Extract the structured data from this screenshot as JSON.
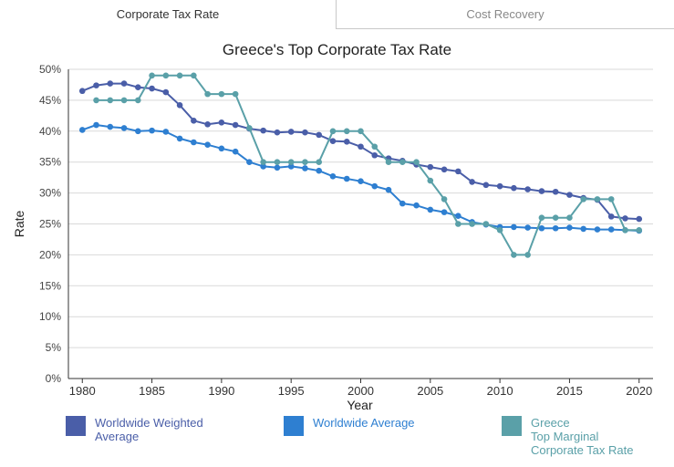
{
  "tabs": [
    {
      "label": "Corporate Tax Rate",
      "active": true
    },
    {
      "label": "Cost Recovery",
      "active": false
    }
  ],
  "chart_data": {
    "type": "line",
    "title": "Greece's Top Corporate Tax Rate",
    "xlabel": "Year",
    "ylabel": "Rate",
    "xlim": [
      1979,
      2021
    ],
    "ylim": [
      0,
      50
    ],
    "xticks": [
      1980,
      1985,
      1990,
      1995,
      2000,
      2005,
      2010,
      2015,
      2020
    ],
    "yticks": [
      0,
      5,
      10,
      15,
      20,
      25,
      30,
      35,
      40,
      45,
      50
    ],
    "ytick_labels": [
      "0%",
      "5%",
      "10%",
      "15%",
      "20%",
      "25%",
      "30%",
      "35%",
      "40%",
      "45%",
      "50%"
    ],
    "grid": true,
    "legend_position": "bottom",
    "series": [
      {
        "name": "Worldwide Weighted Average",
        "color": "#4a5ea8",
        "x": [
          1980,
          1981,
          1982,
          1983,
          1984,
          1985,
          1986,
          1987,
          1988,
          1989,
          1990,
          1991,
          1992,
          1993,
          1994,
          1995,
          1996,
          1997,
          1998,
          1999,
          2000,
          2001,
          2002,
          2003,
          2004,
          2005,
          2006,
          2007,
          2008,
          2009,
          2010,
          2011,
          2012,
          2013,
          2014,
          2015,
          2016,
          2017,
          2018,
          2019,
          2020
        ],
        "values": [
          46.5,
          47.4,
          47.7,
          47.7,
          47.1,
          46.9,
          46.3,
          44.2,
          41.7,
          41.1,
          41.4,
          41.0,
          40.4,
          40.1,
          39.8,
          39.9,
          39.8,
          39.4,
          38.4,
          38.3,
          37.5,
          36.1,
          35.6,
          35.2,
          34.6,
          34.2,
          33.8,
          33.5,
          31.8,
          31.3,
          31.1,
          30.8,
          30.6,
          30.3,
          30.2,
          29.7,
          29.2,
          28.9,
          26.2,
          25.9,
          25.8
        ]
      },
      {
        "name": "Worldwide Average",
        "color": "#2e7fd1",
        "x": [
          1980,
          1981,
          1982,
          1983,
          1984,
          1985,
          1986,
          1987,
          1988,
          1989,
          1990,
          1991,
          1992,
          1993,
          1994,
          1995,
          1996,
          1997,
          1998,
          1999,
          2000,
          2001,
          2002,
          2003,
          2004,
          2005,
          2006,
          2007,
          2008,
          2009,
          2010,
          2011,
          2012,
          2013,
          2014,
          2015,
          2016,
          2017,
          2018,
          2019,
          2020
        ],
        "values": [
          40.2,
          41.0,
          40.7,
          40.5,
          40.0,
          40.1,
          39.9,
          38.8,
          38.2,
          37.8,
          37.2,
          36.7,
          35.0,
          34.3,
          34.1,
          34.3,
          34.0,
          33.6,
          32.7,
          32.3,
          31.9,
          31.1,
          30.5,
          28.3,
          28.0,
          27.3,
          26.9,
          26.3,
          25.3,
          24.9,
          24.5,
          24.5,
          24.4,
          24.3,
          24.3,
          24.4,
          24.2,
          24.1,
          24.1,
          24.0,
          23.9
        ]
      },
      {
        "name": "Greece Top Marginal Corporate Tax Rate",
        "color": "#5aa0a8",
        "x": [
          1981,
          1982,
          1983,
          1984,
          1985,
          1986,
          1987,
          1988,
          1989,
          1990,
          1991,
          1992,
          1993,
          1994,
          1995,
          1996,
          1997,
          1998,
          1999,
          2000,
          2001,
          2002,
          2003,
          2004,
          2005,
          2006,
          2007,
          2008,
          2009,
          2010,
          2011,
          2012,
          2013,
          2014,
          2015,
          2016,
          2017,
          2018,
          2019,
          2020
        ],
        "values": [
          45,
          45,
          45,
          45,
          49,
          49,
          49,
          49,
          46,
          46,
          46,
          40.5,
          35,
          35,
          35,
          35,
          35,
          40,
          40,
          40,
          37.5,
          35,
          35,
          35,
          32,
          29,
          25,
          25,
          25,
          24,
          20,
          20,
          26,
          26,
          26,
          29,
          29,
          29,
          24,
          24
        ]
      }
    ]
  },
  "legend": [
    {
      "label": "Worldwide Weighted\nAverage",
      "color": "#4a5ea8"
    },
    {
      "label": "Worldwide Average",
      "color": "#2e7fd1"
    },
    {
      "label": "Greece\nTop Marginal\nCorporate Tax Rate",
      "color": "#5aa0a8"
    }
  ]
}
